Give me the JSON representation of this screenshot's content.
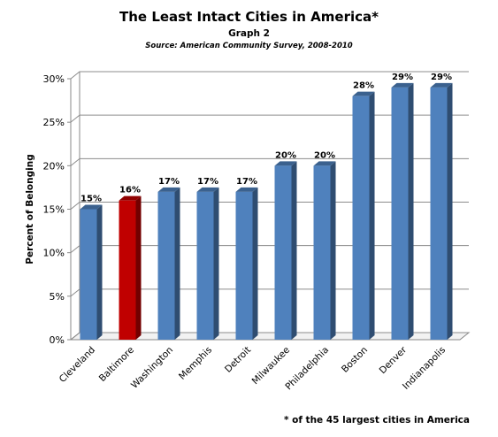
{
  "header": {
    "title": "The Least Intact Cities in America*",
    "subtitle": "Graph 2",
    "source": "Source: American Community Survey, 2008-2010"
  },
  "footnote": "* of the 45 largest cities in America",
  "chart_data": {
    "type": "bar",
    "title": "The Least Intact Cities in America*",
    "xlabel": "",
    "ylabel": "Percent of Belonging",
    "ylim": [
      0,
      30
    ],
    "ytick_step": 5,
    "ytick_labels": [
      "0%",
      "5%",
      "10%",
      "15%",
      "20%",
      "25%",
      "30%"
    ],
    "grid": true,
    "categories": [
      "Cleveland",
      "Baltimore",
      "Washington",
      "Memphis",
      "Detroit",
      "Milwaukee",
      "Philadelphia",
      "Boston",
      "Denver",
      "Indianapolis"
    ],
    "values": [
      15,
      16,
      17,
      17,
      17,
      20,
      20,
      28,
      29,
      29
    ],
    "data_labels": [
      "15%",
      "16%",
      "17%",
      "17%",
      "17%",
      "20%",
      "20%",
      "28%",
      "29%",
      "29%"
    ],
    "colors": [
      "#4f81bd",
      "#c00000",
      "#4f81bd",
      "#4f81bd",
      "#4f81bd",
      "#4f81bd",
      "#4f81bd",
      "#4f81bd",
      "#4f81bd",
      "#4f81bd"
    ]
  }
}
